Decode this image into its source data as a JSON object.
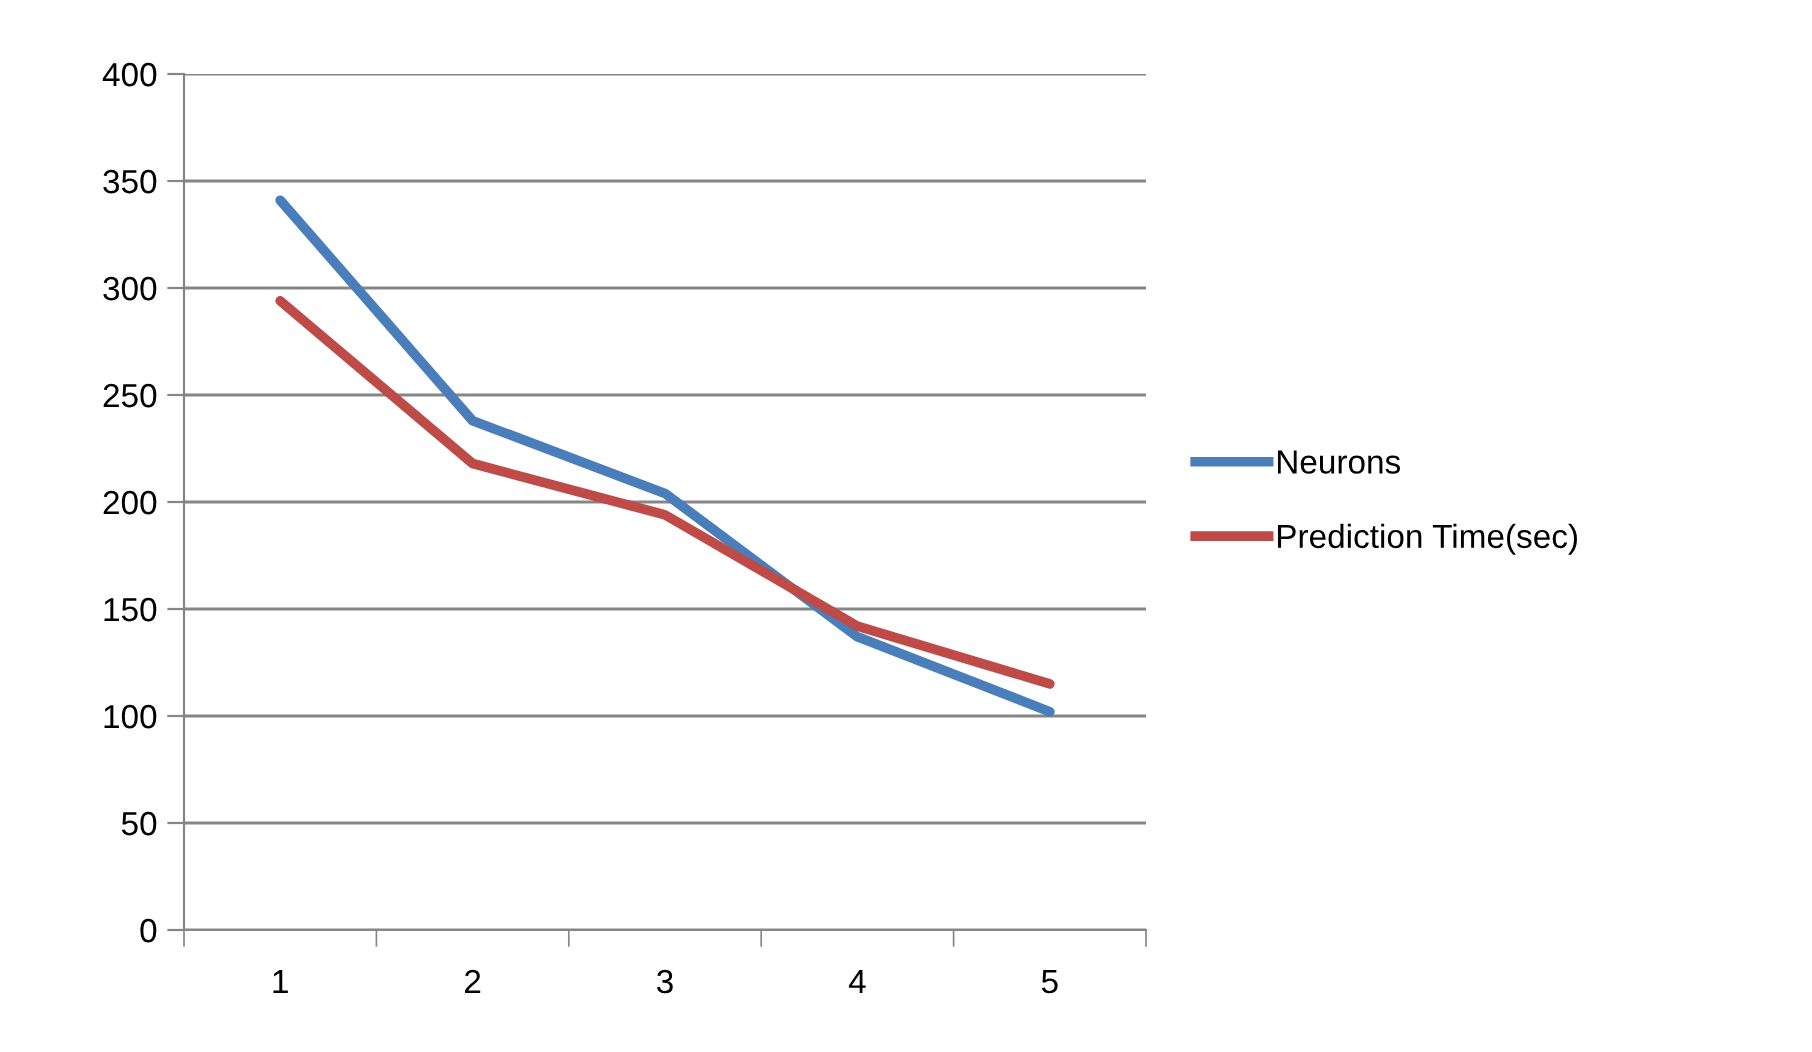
{
  "chart_data": {
    "type": "line",
    "categories": [
      "1",
      "2",
      "3",
      "4",
      "5"
    ],
    "series": [
      {
        "name": "Neurons",
        "color": "#4a7ebb",
        "values": [
          341,
          238,
          204,
          137,
          102
        ]
      },
      {
        "name": "Prediction Time(sec)",
        "color": "#be4b48",
        "values": [
          294,
          218,
          194,
          142,
          115
        ]
      }
    ],
    "ylim": [
      0,
      400
    ],
    "yticks": [
      0,
      50,
      100,
      150,
      200,
      250,
      300,
      350,
      400
    ],
    "grid": "y",
    "legend": "right",
    "marker": "none",
    "line_style": "solid"
  }
}
